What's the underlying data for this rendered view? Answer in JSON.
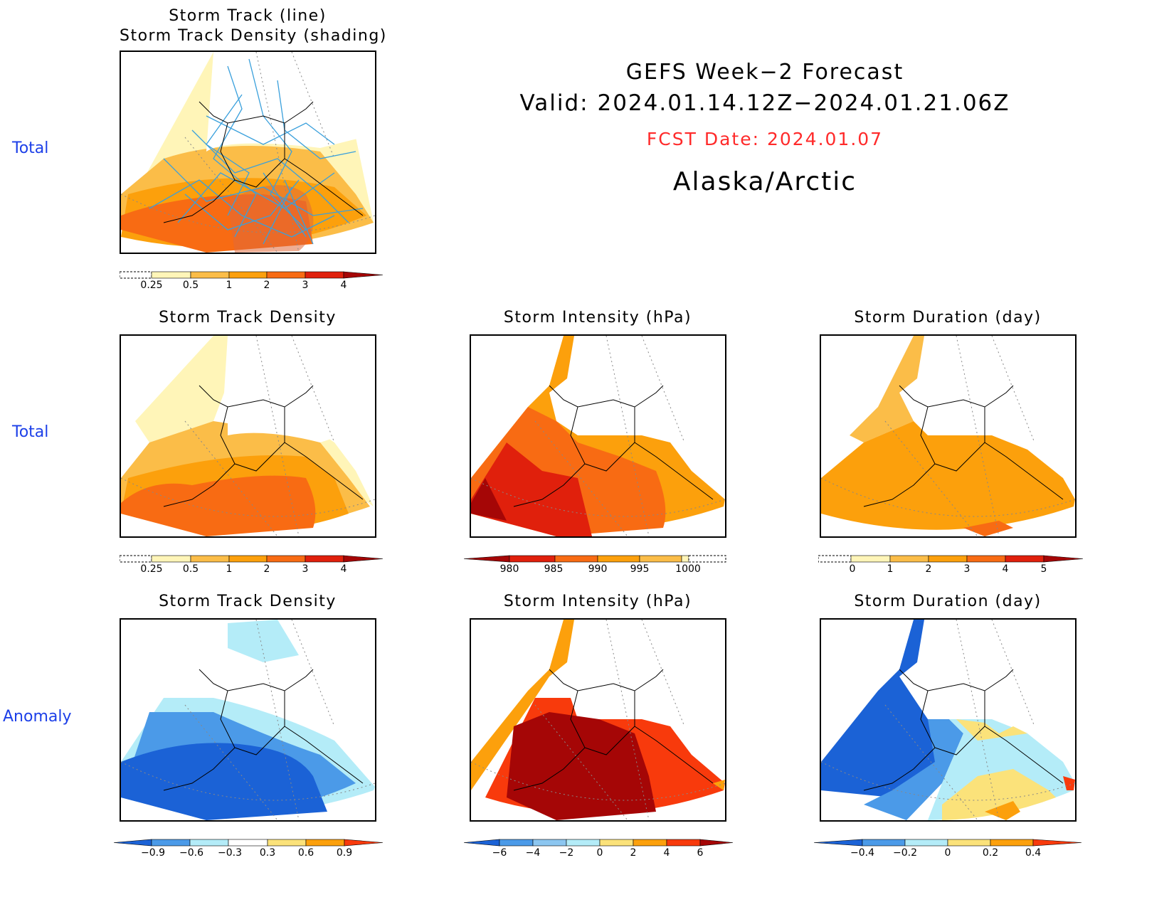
{
  "header": {
    "line1": "GEFS Week−2 Forecast",
    "line2": "Valid: 2024.01.14.12Z−2024.01.21.06Z",
    "fcst": "FCST Date: 2024.01.07",
    "region": "Alaska/Arctic",
    "fcst_color": "#ff2a2a"
  },
  "rows": {
    "r1": "Total",
    "r2": "Total",
    "r3": "Anomaly"
  },
  "panels": {
    "p1": {
      "title1": "Storm Track (line)",
      "title2": "Storm Track Density (shading)",
      "ticks": [
        "0.25",
        "0.5",
        "1",
        "2",
        "3",
        "4"
      ]
    },
    "p2": {
      "title": "Storm Track Density",
      "ticks": [
        "0.25",
        "0.5",
        "1",
        "2",
        "3",
        "4"
      ]
    },
    "p3": {
      "title": "Storm Intensity (hPa)",
      "ticks": [
        "980",
        "985",
        "990",
        "995",
        "1000"
      ]
    },
    "p4": {
      "title": "Storm Duration (day)",
      "ticks": [
        "0",
        "1",
        "2",
        "3",
        "4",
        "5"
      ]
    },
    "p5": {
      "title": "Storm Track Density",
      "ticks": [
        "−0.9",
        "−0.6",
        "−0.3",
        "0.3",
        "0.6",
        "0.9"
      ]
    },
    "p6": {
      "title": "Storm Intensity (hPa)",
      "ticks": [
        "−6",
        "−4",
        "−2",
        "0",
        "2",
        "4",
        "6"
      ]
    },
    "p7": {
      "title": "Storm Duration (day)",
      "ticks": [
        "−0.4",
        "−0.2",
        "0",
        "0.2",
        "0.4"
      ]
    }
  },
  "colors": {
    "label_blue": "#1c3fe8",
    "track_line": "#3aa0dc",
    "pale_yellow": "#fff5b8",
    "light_orange": "#fbbd48",
    "orange": "#fca00c",
    "dark_orange": "#f86b13",
    "red": "#e0200c",
    "dark_red": "#a50606",
    "anom_blue1": "#1b62d6",
    "anom_blue2": "#4b9ae8",
    "anom_cyan": "#b4ecf8",
    "anom_yellow": "#fbe27a",
    "anom_orange": "#fca00c",
    "anom_red": "#f83a0c"
  }
}
